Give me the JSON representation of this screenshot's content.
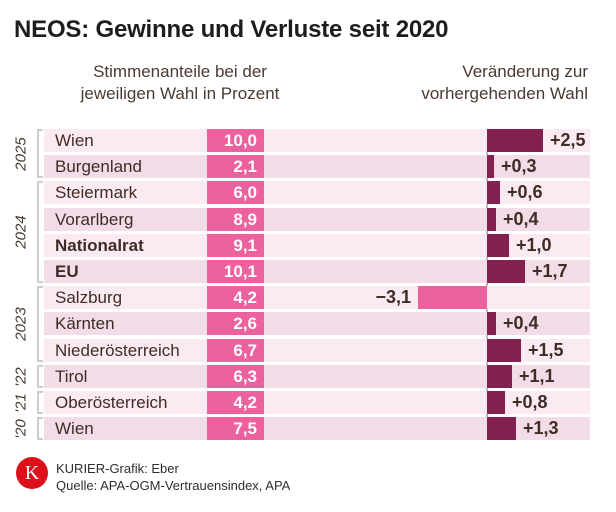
{
  "title": "NEOS: Gewinne und Verluste seit 2020",
  "headers": {
    "left_line1": "Stimmenanteile bei der",
    "left_line2": "jeweiligen Wahl in Prozent",
    "right_line1": "Veränderung zur",
    "right_line2": "vorhergehenden Wahl"
  },
  "chart_data": {
    "type": "bar",
    "title": "NEOS: Gewinne und Verluste seit 2020",
    "left_column_label": "Stimmenanteile bei der jeweiligen Wahl in Prozent",
    "right_column_label": "Veränderung zur vorhergehenden Wahl",
    "x_axis": {
      "unit": "percentage points",
      "baseline": 0,
      "range": [
        -3.5,
        4.5
      ]
    },
    "groups": [
      {
        "year": "2025",
        "entries": [
          {
            "name": "Wien",
            "share": 10.0,
            "share_label": "10,0",
            "change": 2.5,
            "change_label": "+2,5",
            "bold": false
          },
          {
            "name": "Burgenland",
            "share": 2.1,
            "share_label": "2,1",
            "change": 0.3,
            "change_label": "+0,3",
            "bold": false
          }
        ]
      },
      {
        "year": "2024",
        "entries": [
          {
            "name": "Steiermark",
            "share": 6.0,
            "share_label": "6,0",
            "change": 0.6,
            "change_label": "+0,6",
            "bold": false
          },
          {
            "name": "Vorarlberg",
            "share": 8.9,
            "share_label": "8,9",
            "change": 0.4,
            "change_label": "+0,4",
            "bold": false
          },
          {
            "name": "Nationalrat",
            "share": 9.1,
            "share_label": "9,1",
            "change": 1.0,
            "change_label": "+1,0",
            "bold": true
          },
          {
            "name": "EU",
            "share": 10.1,
            "share_label": "10,1",
            "change": 1.7,
            "change_label": "+1,7",
            "bold": true
          }
        ]
      },
      {
        "year": "2023",
        "entries": [
          {
            "name": "Salzburg",
            "share": 4.2,
            "share_label": "4,2",
            "change": -3.1,
            "change_label": "−3,1",
            "bold": false
          },
          {
            "name": "Kärnten",
            "share": 2.6,
            "share_label": "2,6",
            "change": 0.4,
            "change_label": "+0,4",
            "bold": false
          },
          {
            "name": "Niederösterreich",
            "share": 6.7,
            "share_label": "6,7",
            "change": 1.5,
            "change_label": "+1,5",
            "bold": false
          }
        ]
      },
      {
        "year": "'22",
        "entries": [
          {
            "name": "Tirol",
            "share": 6.3,
            "share_label": "6,3",
            "change": 1.1,
            "change_label": "+1,1",
            "bold": false
          }
        ]
      },
      {
        "year": "'21",
        "entries": [
          {
            "name": "Oberösterreich",
            "share": 4.2,
            "share_label": "4,2",
            "change": 0.8,
            "change_label": "+0,8",
            "bold": false
          }
        ]
      },
      {
        "year": "'20",
        "entries": [
          {
            "name": "Wien",
            "share": 7.5,
            "share_label": "7,5",
            "change": 1.3,
            "change_label": "+1,3",
            "bold": false
          }
        ]
      }
    ]
  },
  "colors": {
    "accent_pink": "#ec619e",
    "bar_negative_pink": "#ec619e",
    "bar_positive_dark": "#82214f",
    "row_bg_light": "#fceaf2",
    "row_bg_dark": "#f1dce8",
    "brand_red": "#dc0f1a"
  },
  "footer": {
    "logo_letter": "K",
    "credit": "KURIER-Grafik: Eber",
    "source": "Quelle: APA-OGM-Vertrauensindex, APA"
  }
}
